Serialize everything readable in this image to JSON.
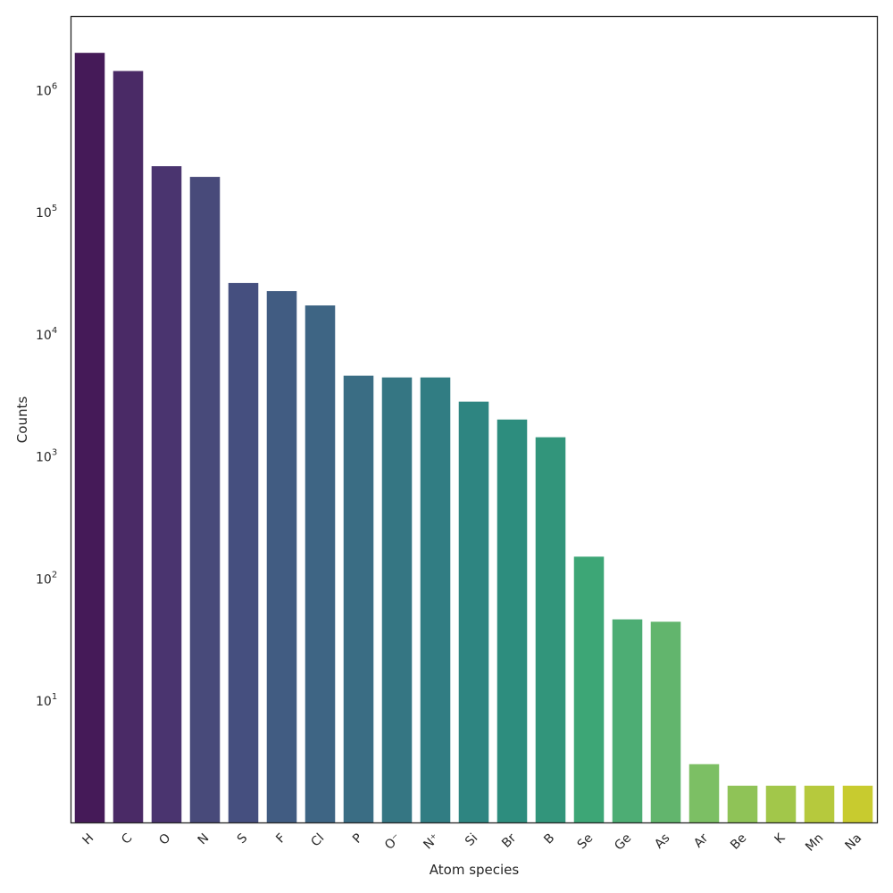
{
  "chart_data": {
    "type": "bar",
    "title": "",
    "xlabel": "Atom species",
    "ylabel": "Counts",
    "yscale": "log",
    "ylim": [
      1,
      4000000
    ],
    "ytick_labels": [
      {
        "value": 10,
        "base": "10",
        "exp": "1"
      },
      {
        "value": 100,
        "base": "10",
        "exp": "2"
      },
      {
        "value": 1000,
        "base": "10",
        "exp": "3"
      },
      {
        "value": 10000,
        "base": "10",
        "exp": "4"
      },
      {
        "value": 100000,
        "base": "10",
        "exp": "5"
      },
      {
        "value": 1000000,
        "base": "10",
        "exp": "6"
      }
    ],
    "grid": false,
    "categories": [
      "H",
      "C",
      "O",
      "N",
      "S",
      "F",
      "Cl",
      "P",
      "O⁻",
      "N⁺",
      "Si",
      "Br",
      "B",
      "Se",
      "Ge",
      "As",
      "Ar",
      "Be",
      "K",
      "Mn",
      "Na"
    ],
    "values": [
      2000000,
      1420000,
      236000,
      193000,
      26100,
      22400,
      17100,
      4550,
      4400,
      4400,
      2790,
      1990,
      1425,
      150,
      46,
      44,
      3,
      2,
      2,
      2,
      2
    ],
    "colors": [
      "#451a58",
      "#4a2a66",
      "#4a346f",
      "#484a7a",
      "#454f7f",
      "#415c82",
      "#3e6584",
      "#3a6d84",
      "#357683",
      "#317d83",
      "#2e8581",
      "#2d8d7e",
      "#32957b",
      "#3da676",
      "#4dad74",
      "#62b56d",
      "#7cbf64",
      "#8fc357",
      "#a2c74a",
      "#b6c93d",
      "#c8cb2f"
    ]
  }
}
